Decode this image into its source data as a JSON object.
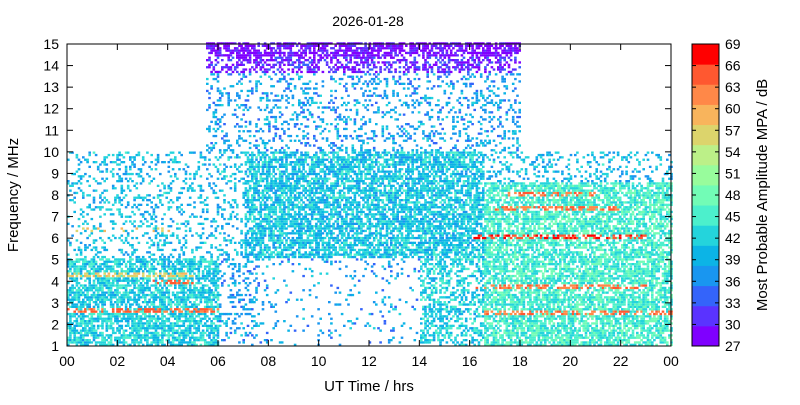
{
  "chart_data": {
    "type": "heatmap",
    "title": "2026-01-28",
    "xlabel": "UT Time / hrs",
    "ylabel": "Frequency / MHz",
    "xlim": [
      0,
      24
    ],
    "ylim": [
      1,
      15
    ],
    "x_ticks": [
      "00",
      "02",
      "04",
      "06",
      "08",
      "10",
      "12",
      "14",
      "16",
      "18",
      "20",
      "22",
      "00"
    ],
    "x_tick_values": [
      0,
      2,
      4,
      6,
      8,
      10,
      12,
      14,
      16,
      18,
      20,
      22,
      24
    ],
    "y_ticks": [
      "1",
      "2",
      "3",
      "4",
      "5",
      "6",
      "7",
      "8",
      "9",
      "10",
      "11",
      "12",
      "13",
      "14",
      "15"
    ],
    "y_tick_values": [
      1,
      2,
      3,
      4,
      5,
      6,
      7,
      8,
      9,
      10,
      11,
      12,
      13,
      14,
      15
    ],
    "colorbar": {
      "label": "Most Probable Amplitude MPA / dB",
      "range": [
        27,
        69
      ],
      "ticks": [
        27,
        30,
        33,
        36,
        39,
        42,
        45,
        48,
        51,
        54,
        57,
        60,
        63,
        66,
        69
      ],
      "colors": [
        "#7f00ff",
        "#5a33ff",
        "#3464fa",
        "#1996f0",
        "#0cb4e6",
        "#24d4dc",
        "#4cf0cc",
        "#72fcb6",
        "#98fc9c",
        "#bcf088",
        "#dcd46c",
        "#f8b45c",
        "#ff8848",
        "#ff5830",
        "#ff0000"
      ]
    },
    "regions": [
      {
        "x": [
          0,
          6
        ],
        "y": [
          1,
          5
        ],
        "mpa": 42,
        "level": "dense"
      },
      {
        "x": [
          0,
          24
        ],
        "y": [
          5,
          10
        ],
        "mpa": 40,
        "level": "sparse"
      },
      {
        "x": [
          7,
          16.5
        ],
        "y": [
          5,
          10
        ],
        "mpa": 41,
        "level": "dense"
      },
      {
        "x": [
          5.5,
          18
        ],
        "y": [
          10,
          15
        ],
        "mpa": 38,
        "level": "sparse"
      },
      {
        "x": [
          16.5,
          24
        ],
        "y": [
          1,
          8.5
        ],
        "mpa": 45,
        "level": "dense"
      },
      {
        "x": [
          5.5,
          7.5
        ],
        "y": [
          1,
          5
        ],
        "mpa": 38,
        "level": "sparse"
      },
      {
        "x": [
          7.5,
          14
        ],
        "y": [
          1,
          5
        ],
        "mpa": 38,
        "level": "very sparse"
      },
      {
        "x": [
          14,
          16.5
        ],
        "y": [
          1,
          5
        ],
        "mpa": 42,
        "level": "medium"
      },
      {
        "x": [
          5.5,
          18
        ],
        "y": [
          14.4,
          15
        ],
        "mpa": 28,
        "level": "dense"
      },
      {
        "x": [
          5.5,
          18
        ],
        "y": [
          13.6,
          14.4
        ],
        "mpa": 30,
        "level": "medium"
      }
    ],
    "strong_bands": [
      {
        "x": [
          0,
          6
        ],
        "y": 2.6,
        "mpa": 64
      },
      {
        "x": [
          0,
          5
        ],
        "y": 4.2,
        "mpa": 57
      },
      {
        "x": [
          0,
          4
        ],
        "y": 6.3,
        "mpa": 58
      },
      {
        "x": [
          3,
          5
        ],
        "y": 3.9,
        "mpa": 64
      },
      {
        "x": [
          16.5,
          24
        ],
        "y": 2.5,
        "mpa": 63
      },
      {
        "x": [
          16,
          23
        ],
        "y": 3.7,
        "mpa": 63
      },
      {
        "x": [
          16,
          23
        ],
        "y": 6.0,
        "mpa": 66
      },
      {
        "x": [
          17,
          22
        ],
        "y": 7.3,
        "mpa": 63
      },
      {
        "x": [
          17.5,
          21
        ],
        "y": 8.0,
        "mpa": 63
      }
    ]
  }
}
